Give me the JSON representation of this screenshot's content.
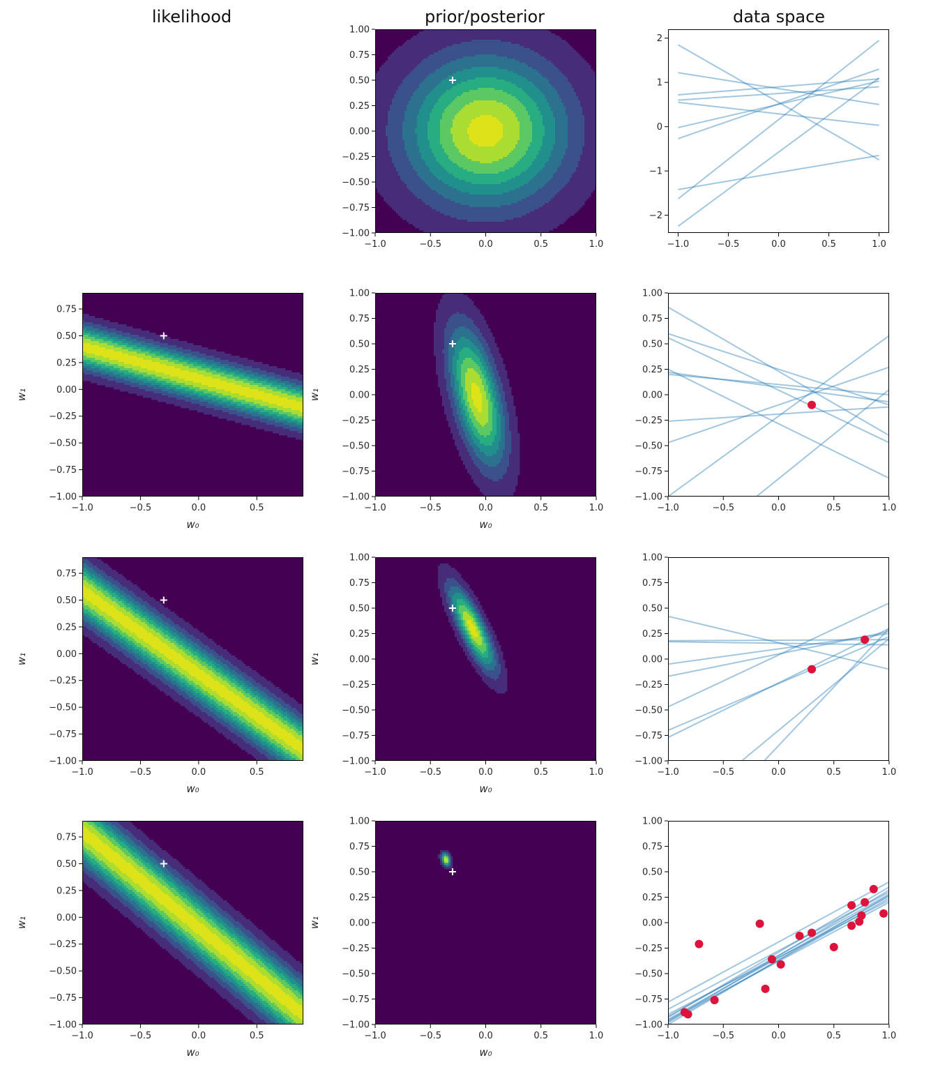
{
  "figure": {
    "column_titles": [
      "likelihood",
      "prior/posterior",
      "data space"
    ]
  },
  "colors": {
    "viridis": [
      "#440154",
      "#472c7a",
      "#3b518b",
      "#2c718e",
      "#21908d",
      "#27ad81",
      "#5cc863",
      "#aadc32",
      "#dde318"
    ],
    "sample_line": "#1f77b4",
    "data_point": "#dc143c",
    "true_marker": "#ffffff"
  },
  "chart_data": [
    {
      "id": "prior",
      "type": "heatmap",
      "title": "prior/posterior",
      "row": 0,
      "col": 1,
      "xlim": [
        -1,
        1
      ],
      "ylim": [
        -1,
        1
      ],
      "xticks": [
        "−1.0",
        "−0.5",
        "0.0",
        "0.5",
        "1.0"
      ],
      "yticks": [
        "1.00",
        "0.75",
        "0.50",
        "0.25",
        "0.00",
        "−0.25",
        "−0.50",
        "−0.75",
        "−1.00"
      ],
      "xlabel": "",
      "ylabel": "",
      "gaussian": {
        "mx": 0,
        "my": 0,
        "sx": 0.5,
        "sy": 0.5,
        "rho": 0
      },
      "true_w": [
        -0.3,
        0.5
      ]
    },
    {
      "id": "prior-samples",
      "type": "line",
      "title": "data space",
      "row": 0,
      "col": 2,
      "xlim": [
        -1.1,
        1.1
      ],
      "ylim": [
        -2.4,
        2.2
      ],
      "xticks": [
        "−1.0",
        "−0.5",
        "0.0",
        "0.5",
        "1.0"
      ],
      "yticks": [
        "2",
        "1",
        "0",
        "−1",
        "−2"
      ],
      "lines": [
        [
          -1,
          1.85,
          1,
          -0.75
        ],
        [
          -1,
          1.22,
          1,
          0.5
        ],
        [
          -1,
          0.72,
          1,
          1.08
        ],
        [
          -1,
          0.6,
          1,
          0.9
        ],
        [
          -1,
          0.55,
          1,
          0.03
        ],
        [
          -1,
          -0.02,
          1,
          1.03
        ],
        [
          -1,
          -0.27,
          1,
          1.3
        ],
        [
          -1,
          -1.42,
          1,
          -0.65
        ],
        [
          -1,
          -1.63,
          1,
          1.95
        ],
        [
          -1,
          -2.25,
          1,
          1.1
        ]
      ],
      "points": []
    },
    {
      "id": "like-1",
      "type": "heatmap",
      "title": "",
      "row": 1,
      "col": 0,
      "xlim": [
        -1,
        0.9
      ],
      "ylim": [
        -1,
        0.9
      ],
      "xticks": [
        "−1.0",
        "−0.5",
        "0.0",
        "0.5"
      ],
      "yticks": [
        "0.75",
        "0.50",
        "0.25",
        "0.00",
        "−0.25",
        "−0.50",
        "−0.75",
        "−1.00"
      ],
      "xlabel": "w₀",
      "ylabel": "w₁",
      "band": {
        "a": 1,
        "b": 0.3,
        "c": -0.1,
        "sigma": 0.13
      },
      "true_w": [
        -0.3,
        0.5
      ]
    },
    {
      "id": "post-1",
      "type": "heatmap",
      "title": "",
      "row": 1,
      "col": 1,
      "xlim": [
        -1,
        1
      ],
      "ylim": [
        -1,
        1
      ],
      "xticks": [
        "−1.0",
        "−0.5",
        "0.0",
        "0.5",
        "1.0"
      ],
      "yticks": [
        "1.00",
        "0.75",
        "0.50",
        "0.25",
        "0.00",
        "−0.25",
        "−0.50",
        "−0.75",
        "−1.00"
      ],
      "xlabel": "w₀",
      "ylabel": "w₁",
      "gaussian": {
        "mx": -0.08,
        "my": -0.02,
        "sx": 0.17,
        "sy": 0.46,
        "rho": -0.55
      },
      "true_w": [
        -0.3,
        0.5
      ]
    },
    {
      "id": "samples-1",
      "type": "line",
      "title": "",
      "row": 1,
      "col": 2,
      "xlim": [
        -1,
        1
      ],
      "ylim": [
        -1,
        1
      ],
      "xticks": [
        "−1.0",
        "−0.5",
        "0.0",
        "0.5",
        "1.0"
      ],
      "yticks": [
        "1.00",
        "0.75",
        "0.50",
        "0.25",
        "0.00",
        "−0.25",
        "−0.50",
        "−0.75",
        "−1.00"
      ],
      "lines": [
        [
          -1,
          0.86,
          1,
          -0.4
        ],
        [
          -1,
          0.6,
          1,
          -0.1
        ],
        [
          -1,
          0.56,
          1,
          -0.47
        ],
        [
          -1,
          0.25,
          1,
          -0.82
        ],
        [
          -1,
          0.2,
          1,
          0.0
        ],
        [
          -1,
          -0.26,
          1,
          -0.12
        ],
        [
          -1,
          -0.47,
          1,
          0.27
        ],
        [
          -1,
          -1.0,
          1,
          0.58
        ],
        [
          -1,
          0.22,
          1,
          -0.07
        ],
        [
          -1,
          -1.7,
          1,
          0.05
        ]
      ],
      "points": [
        [
          0.3,
          -0.1
        ]
      ]
    },
    {
      "id": "like-2",
      "type": "heatmap",
      "title": "",
      "row": 2,
      "col": 0,
      "xlim": [
        -1,
        0.9
      ],
      "ylim": [
        -1,
        0.9
      ],
      "xticks": [
        "−1.0",
        "−0.5",
        "0.0",
        "0.5"
      ],
      "yticks": [
        "0.75",
        "0.50",
        "0.25",
        "0.00",
        "−0.25",
        "−0.50",
        "−0.75",
        "−1.00"
      ],
      "xlabel": "w₀",
      "ylabel": "w₁",
      "band": {
        "a": 1,
        "b": 0.78,
        "c": 0.19,
        "sigma": 0.14
      },
      "true_w": [
        -0.3,
        0.5
      ]
    },
    {
      "id": "post-2",
      "type": "heatmap",
      "title": "",
      "row": 2,
      "col": 1,
      "xlim": [
        -1,
        1
      ],
      "ylim": [
        -1,
        1
      ],
      "xticks": [
        "−1.0",
        "−0.5",
        "0.0",
        "0.5",
        "1.0"
      ],
      "yticks": [
        "1.00",
        "0.75",
        "0.50",
        "0.25",
        "0.00",
        "−0.25",
        "−0.50",
        "−0.75",
        "−1.00"
      ],
      "xlabel": "w₀",
      "ylabel": "w₁",
      "gaussian": {
        "mx": -0.12,
        "my": 0.3,
        "sx": 0.14,
        "sy": 0.28,
        "rho": -0.82
      },
      "true_w": [
        -0.3,
        0.5
      ]
    },
    {
      "id": "samples-2",
      "type": "line",
      "title": "",
      "row": 2,
      "col": 2,
      "xlim": [
        -1,
        1
      ],
      "ylim": [
        -1,
        1
      ],
      "xticks": [
        "−1.0",
        "−0.5",
        "0.0",
        "0.5",
        "1.0"
      ],
      "yticks": [
        "1.00",
        "0.75",
        "0.50",
        "0.25",
        "0.00",
        "−0.25",
        "−0.50",
        "−0.75",
        "−1.00"
      ],
      "lines": [
        [
          -1,
          0.42,
          1,
          -0.1
        ],
        [
          -1,
          0.18,
          1,
          0.19
        ],
        [
          -1,
          0.17,
          1,
          0.14
        ],
        [
          -1,
          -0.17,
          1,
          0.27
        ],
        [
          -1,
          -0.47,
          1,
          0.55
        ],
        [
          -1,
          -0.7,
          1,
          0.22
        ],
        [
          -1,
          -0.77,
          1,
          0.3
        ],
        [
          -1,
          -1.6,
          1,
          0.2
        ],
        [
          -1,
          -2.0,
          1,
          0.3
        ],
        [
          -1,
          -0.05,
          1,
          0.25
        ]
      ],
      "points": [
        [
          0.3,
          -0.1
        ],
        [
          0.78,
          0.19
        ]
      ]
    },
    {
      "id": "like-3",
      "type": "heatmap",
      "title": "",
      "row": 3,
      "col": 0,
      "xlim": [
        -1,
        0.9
      ],
      "ylim": [
        -1,
        0.9
      ],
      "xticks": [
        "−1.0",
        "−0.5",
        "0.0",
        "0.5"
      ],
      "yticks": [
        "0.75",
        "0.50",
        "0.25",
        "0.00",
        "−0.25",
        "−0.50",
        "−0.75",
        "−1.00"
      ],
      "xlabel": "w₀",
      "ylabel": "w₁",
      "band": {
        "a": 1,
        "b": 0.9,
        "c": 0.1,
        "sigma": 0.15
      },
      "true_w": [
        -0.3,
        0.5
      ]
    },
    {
      "id": "post-3",
      "type": "heatmap",
      "title": "",
      "row": 3,
      "col": 1,
      "xlim": [
        -1,
        1
      ],
      "ylim": [
        -1,
        1
      ],
      "xticks": [
        "−1.0",
        "−0.5",
        "0.0",
        "0.5",
        "1.0"
      ],
      "yticks": [
        "1.00",
        "0.75",
        "0.50",
        "0.25",
        "0.00",
        "−0.25",
        "−0.50",
        "−0.75",
        "−1.00"
      ],
      "xlabel": "w₀",
      "ylabel": "w₁",
      "gaussian": {
        "mx": -0.36,
        "my": 0.62,
        "sx": 0.028,
        "sy": 0.045,
        "rho": -0.3
      },
      "true_w": [
        -0.3,
        0.5
      ]
    },
    {
      "id": "samples-3",
      "type": "scatter",
      "title": "",
      "row": 3,
      "col": 2,
      "xlim": [
        -1,
        1
      ],
      "ylim": [
        -1,
        1
      ],
      "xticks": [
        "−1.0",
        "−0.5",
        "0.0",
        "0.5",
        "1.0"
      ],
      "yticks": [
        "1.00",
        "0.75",
        "0.50",
        "0.25",
        "0.00",
        "−0.25",
        "−0.50",
        "−0.75",
        "−1.00"
      ],
      "lines": [
        [
          -1,
          -0.78,
          1,
          0.4
        ],
        [
          -1,
          -0.85,
          1,
          0.3
        ],
        [
          -1,
          -0.92,
          1,
          0.28
        ],
        [
          -1,
          -0.95,
          1,
          0.26
        ],
        [
          -1,
          -0.98,
          1,
          0.24
        ],
        [
          -1,
          -0.96,
          1,
          0.2
        ],
        [
          -1,
          -1.0,
          1,
          0.27
        ],
        [
          -1,
          -0.9,
          1,
          0.22
        ],
        [
          -1,
          -0.93,
          1,
          0.35
        ],
        [
          -1,
          -0.97,
          1,
          0.32
        ]
      ],
      "points": [
        [
          -0.85,
          -0.88
        ],
        [
          -0.82,
          -0.9
        ],
        [
          -0.72,
          -0.21
        ],
        [
          -0.58,
          -0.76
        ],
        [
          -0.17,
          -0.01
        ],
        [
          -0.12,
          -0.65
        ],
        [
          -0.06,
          -0.36
        ],
        [
          0.02,
          -0.41
        ],
        [
          0.19,
          -0.13
        ],
        [
          0.3,
          -0.1
        ],
        [
          0.5,
          -0.24
        ],
        [
          0.66,
          0.17
        ],
        [
          0.66,
          -0.03
        ],
        [
          0.73,
          0.01
        ],
        [
          0.75,
          0.07
        ],
        [
          0.78,
          0.2
        ],
        [
          0.86,
          0.33
        ],
        [
          0.95,
          0.09
        ]
      ]
    }
  ]
}
